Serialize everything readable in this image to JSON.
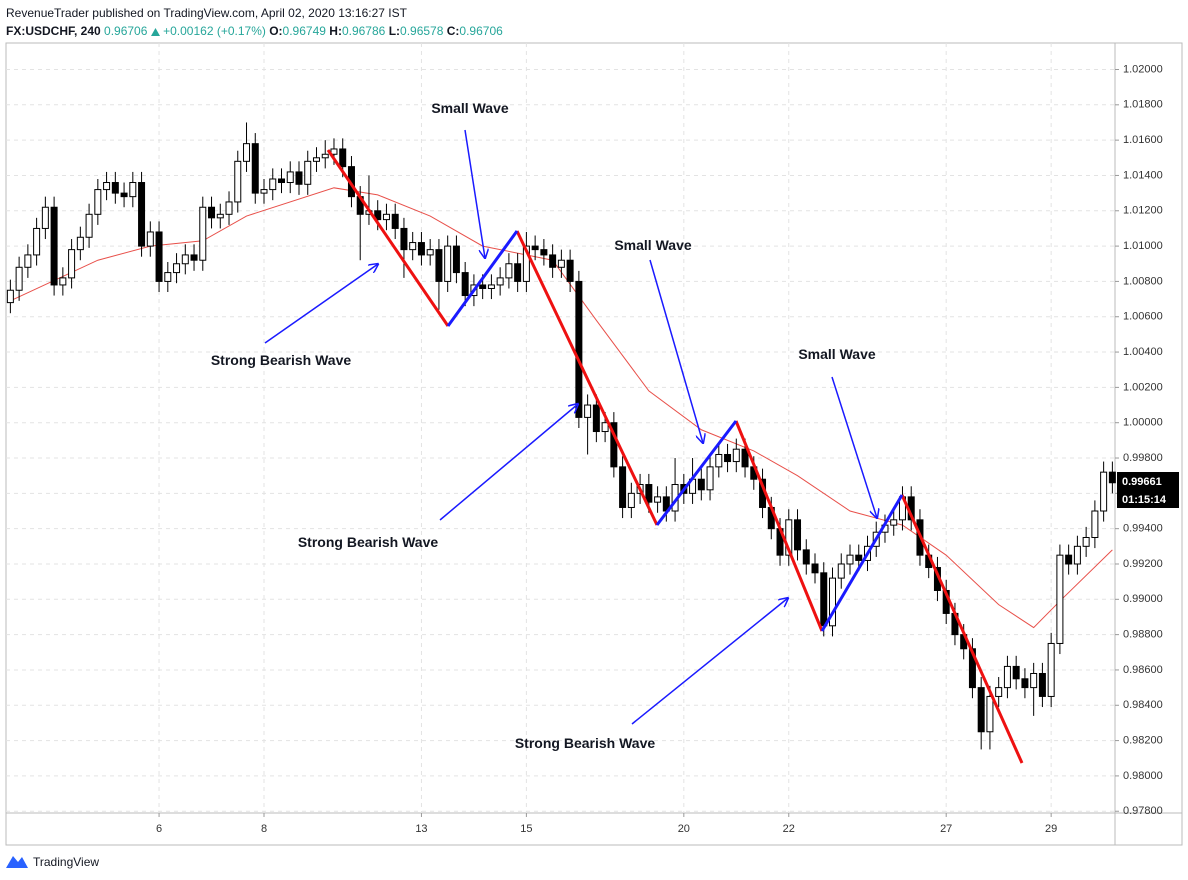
{
  "header": {
    "line1": "RevenueTrader published on TradingView.com, April 02, 2020 13:16:27 IST",
    "symbol": "FX:USDCHF, 240",
    "price": "0.96706",
    "change": "+0.00162 (+0.17%)",
    "ohlc": [
      {
        "label": "O:",
        "value": "0.96749"
      },
      {
        "label": "H:",
        "value": "0.96786"
      },
      {
        "label": "L:",
        "value": "0.96578"
      },
      {
        "label": "C:",
        "value": "0.96706"
      }
    ]
  },
  "footer": {
    "brand": "TradingView"
  },
  "chart_data": {
    "type": "candlestick",
    "open": [
      1.0068,
      1.0075,
      1.0088,
      1.0095,
      1.011,
      1.0122,
      1.0078,
      1.0082,
      1.0098,
      1.0105,
      1.0118,
      1.0132,
      1.0136,
      1.013,
      1.0128,
      1.0136,
      1.01,
      1.0108,
      1.008,
      1.0085,
      1.009,
      1.0095,
      1.0092,
      1.0122,
      1.0116,
      1.0118,
      1.0125,
      1.0148,
      1.0158,
      1.013,
      1.0132,
      1.0138,
      1.0136,
      1.0142,
      1.0135,
      1.0148,
      1.015,
      1.0152,
      1.0155,
      1.0145,
      1.0128,
      1.0118,
      1.012,
      1.0115,
      1.0118,
      1.011,
      1.0098,
      1.0102,
      1.0095,
      1.0098,
      1.008,
      1.01,
      1.0085,
      1.0072,
      1.0078,
      1.0076,
      1.0078,
      1.0082,
      1.009,
      1.008,
      1.01,
      1.0098,
      1.0095,
      1.0088,
      1.0092,
      1.008,
      1.0003,
      1.001,
      0.9995,
      1.0,
      0.9975,
      0.9952,
      0.996,
      0.9965,
      0.9955,
      0.9958,
      0.995,
      0.9965,
      0.996,
      0.9968,
      0.9962,
      0.9975,
      0.9982,
      0.9978,
      0.9985,
      0.9975,
      0.9968,
      0.9952,
      0.994,
      0.9925,
      0.9945,
      0.9928,
      0.992,
      0.9915,
      0.9885,
      0.9912,
      0.992,
      0.9925,
      0.9922,
      0.993,
      0.9938,
      0.9942,
      0.9945,
      0.9958,
      0.9945,
      0.9925,
      0.9918,
      0.9905,
      0.9892,
      0.988,
      0.9872,
      0.985,
      0.9825,
      0.9845,
      0.985,
      0.9862,
      0.9855,
      0.985,
      0.9858,
      0.9845,
      0.9875,
      0.9925,
      0.992,
      0.993,
      0.9935,
      0.995,
      0.9972
    ],
    "high": [
      1.0081,
      1.0094,
      1.0101,
      1.0116,
      1.0128,
      1.0128,
      1.0088,
      1.0104,
      1.0111,
      1.0124,
      1.0138,
      1.0142,
      1.0142,
      1.0136,
      1.0142,
      1.0142,
      1.0114,
      1.0114,
      1.0091,
      1.0096,
      1.0101,
      1.0101,
      1.0128,
      1.0128,
      1.0124,
      1.0131,
      1.0154,
      1.017,
      1.0164,
      1.0138,
      1.0144,
      1.0144,
      1.0148,
      1.0148,
      1.0154,
      1.0156,
      1.016,
      1.0161,
      1.0161,
      1.0151,
      1.0134,
      1.014,
      1.0126,
      1.0124,
      1.0124,
      1.0116,
      1.0108,
      1.0108,
      1.0104,
      1.0104,
      1.0106,
      1.0106,
      1.0091,
      1.0084,
      1.0084,
      1.0084,
      1.0088,
      1.0096,
      1.0096,
      1.0108,
      1.0106,
      1.0104,
      1.0101,
      1.0098,
      1.0098,
      1.0086,
      1.0016,
      1.0016,
      1.0006,
      1.0006,
      0.9981,
      0.9966,
      0.9971,
      0.9971,
      0.9964,
      0.9964,
      0.998,
      0.9971,
      0.998,
      0.9974,
      0.9981,
      0.9988,
      0.9988,
      0.9991,
      0.9991,
      0.9981,
      0.9974,
      0.9958,
      0.9946,
      0.9951,
      0.9951,
      0.9934,
      0.9926,
      0.9921,
      0.9918,
      0.9926,
      0.9931,
      0.9931,
      0.9936,
      0.9944,
      0.9948,
      0.9951,
      0.9964,
      0.9964,
      0.9951,
      0.9931,
      0.9924,
      0.9911,
      0.9898,
      0.9886,
      0.9878,
      0.9856,
      0.9851,
      0.9856,
      0.9868,
      0.9868,
      0.9861,
      0.9864,
      0.9864,
      0.9881,
      0.9931,
      0.9931,
      0.9936,
      0.9941,
      0.9956,
      0.9978,
      0.9978
    ],
    "low": [
      1.0062,
      1.0069,
      1.0082,
      1.0089,
      1.0104,
      1.0072,
      1.0072,
      1.0076,
      1.0092,
      1.0099,
      1.0112,
      1.0126,
      1.0124,
      1.0122,
      1.0122,
      1.0094,
      1.0094,
      1.0074,
      1.0074,
      1.0079,
      1.0084,
      1.0086,
      1.0086,
      1.011,
      1.011,
      1.0112,
      1.0119,
      1.0142,
      1.0124,
      1.0124,
      1.0126,
      1.013,
      1.013,
      1.0129,
      1.0129,
      1.0142,
      1.0144,
      1.0146,
      1.0139,
      1.0122,
      1.0092,
      1.0112,
      1.0109,
      1.0109,
      1.0104,
      1.0082,
      1.0092,
      1.0089,
      1.0089,
      1.0064,
      1.0074,
      1.0079,
      1.0066,
      1.0066,
      1.007,
      1.007,
      1.0072,
      1.0076,
      1.0074,
      1.0074,
      1.0092,
      1.0089,
      1.0082,
      1.0082,
      1.0074,
      0.9997,
      0.9982,
      0.9989,
      0.9989,
      0.9969,
      0.9946,
      0.9946,
      0.9954,
      0.9949,
      0.9949,
      0.9944,
      0.9944,
      0.9954,
      0.9954,
      0.9956,
      0.9956,
      0.9969,
      0.9972,
      0.9972,
      0.9969,
      0.9962,
      0.9946,
      0.9934,
      0.9919,
      0.9919,
      0.9922,
      0.9914,
      0.9909,
      0.9879,
      0.9879,
      0.9906,
      0.9914,
      0.9916,
      0.9916,
      0.9924,
      0.9932,
      0.9936,
      0.9939,
      0.9939,
      0.9919,
      0.9912,
      0.9899,
      0.9886,
      0.9874,
      0.9866,
      0.9844,
      0.9815,
      0.9815,
      0.9839,
      0.9844,
      0.9849,
      0.9844,
      0.9834,
      0.9839,
      0.9839,
      0.9869,
      0.9914,
      0.9914,
      0.9924,
      0.9929,
      0.9944,
      0.996
    ],
    "close": [
      1.0075,
      1.0088,
      1.0095,
      1.011,
      1.0122,
      1.0078,
      1.0082,
      1.0098,
      1.0105,
      1.0118,
      1.0132,
      1.0136,
      1.013,
      1.0128,
      1.0136,
      1.01,
      1.0108,
      1.008,
      1.0085,
      1.009,
      1.0095,
      1.0092,
      1.0122,
      1.0116,
      1.0118,
      1.0125,
      1.0148,
      1.0158,
      1.013,
      1.0132,
      1.0138,
      1.0136,
      1.0142,
      1.0135,
      1.0148,
      1.015,
      1.0152,
      1.0155,
      1.0145,
      1.0128,
      1.0118,
      1.012,
      1.0115,
      1.0118,
      1.011,
      1.0098,
      1.0102,
      1.0095,
      1.0098,
      1.008,
      1.01,
      1.0085,
      1.0072,
      1.0078,
      1.0076,
      1.0078,
      1.0082,
      1.009,
      1.008,
      1.01,
      1.0098,
      1.0095,
      1.0088,
      1.0092,
      1.008,
      1.0003,
      1.001,
      0.9995,
      1.0,
      0.9975,
      0.9952,
      0.996,
      0.9965,
      0.9955,
      0.9958,
      0.995,
      0.9965,
      0.996,
      0.9968,
      0.9962,
      0.9975,
      0.9982,
      0.9978,
      0.9985,
      0.9975,
      0.9968,
      0.9952,
      0.994,
      0.9925,
      0.9945,
      0.9928,
      0.992,
      0.9915,
      0.9885,
      0.9912,
      0.992,
      0.9925,
      0.9922,
      0.993,
      0.9938,
      0.9942,
      0.9945,
      0.9958,
      0.9945,
      0.9925,
      0.9918,
      0.9905,
      0.9892,
      0.988,
      0.9872,
      0.985,
      0.9825,
      0.9845,
      0.985,
      0.9862,
      0.9855,
      0.985,
      0.9858,
      0.9845,
      0.9875,
      0.9925,
      0.992,
      0.993,
      0.9935,
      0.995,
      0.9972,
      0.9966
    ],
    "up_color": "#ffffff",
    "down_color": "#000000",
    "ma": {
      "color": "#e8504a",
      "x": [
        0,
        10,
        16,
        22,
        27,
        37,
        42,
        48,
        54,
        62,
        67,
        73,
        79,
        85,
        90,
        96,
        102,
        107,
        113,
        117,
        120,
        126
      ],
      "values": [
        1.0069,
        1.0092,
        1.01,
        1.0103,
        1.0117,
        1.0133,
        1.0129,
        1.0117,
        1.01,
        1.0092,
        1.0058,
        1.0018,
        0.9996,
        0.9984,
        0.997,
        0.995,
        0.9942,
        0.9925,
        0.9897,
        0.9884,
        0.9899,
        0.9928
      ]
    },
    "xlim": [
      -0.5,
      126.3
    ],
    "xticks": [
      {
        "value": 17,
        "label": "6"
      },
      {
        "value": 29,
        "label": "8"
      },
      {
        "value": 47,
        "label": "13"
      },
      {
        "value": 59,
        "label": "15"
      },
      {
        "value": 77,
        "label": "20"
      },
      {
        "value": 89,
        "label": "22"
      },
      {
        "value": 107,
        "label": "27"
      },
      {
        "value": 119,
        "label": "29"
      }
    ],
    "ylim": [
      0.9779,
      1.0215
    ],
    "yticks": [
      {
        "value": 0.978,
        "label": "0.97800"
      },
      {
        "value": 0.98,
        "label": "0.98000"
      },
      {
        "value": 0.982,
        "label": "0.98200"
      },
      {
        "value": 0.984,
        "label": "0.98400"
      },
      {
        "value": 0.986,
        "label": "0.98600"
      },
      {
        "value": 0.988,
        "label": "0.98800"
      },
      {
        "value": 0.99,
        "label": "0.99000"
      },
      {
        "value": 0.992,
        "label": "0.99200"
      },
      {
        "value": 0.994,
        "label": "0.99400"
      },
      {
        "value": 0.996,
        "label": "0.99600"
      },
      {
        "value": 0.998,
        "label": "0.99800"
      },
      {
        "value": 1.0,
        "label": "1.00000"
      },
      {
        "value": 1.002,
        "label": "1.00200"
      },
      {
        "value": 1.004,
        "label": "1.00400"
      },
      {
        "value": 1.006,
        "label": "1.00600"
      },
      {
        "value": 1.008,
        "label": "1.00800"
      },
      {
        "value": 1.01,
        "label": "1.01000"
      },
      {
        "value": 1.012,
        "label": "1.01200"
      },
      {
        "value": 1.014,
        "label": "1.01400"
      },
      {
        "value": 1.016,
        "label": "1.01600"
      },
      {
        "value": 1.018,
        "label": "1.01800"
      },
      {
        "value": 1.02,
        "label": "1.02000"
      }
    ],
    "grid": true,
    "annotations": [
      "Small Wave",
      "Small Wave",
      "Small Wave",
      "Strong Bearish Wave",
      "Strong Bearish Wave",
      "Strong Bearish Wave"
    ],
    "last_price": "0.99661",
    "countdown": "01:15:14"
  }
}
